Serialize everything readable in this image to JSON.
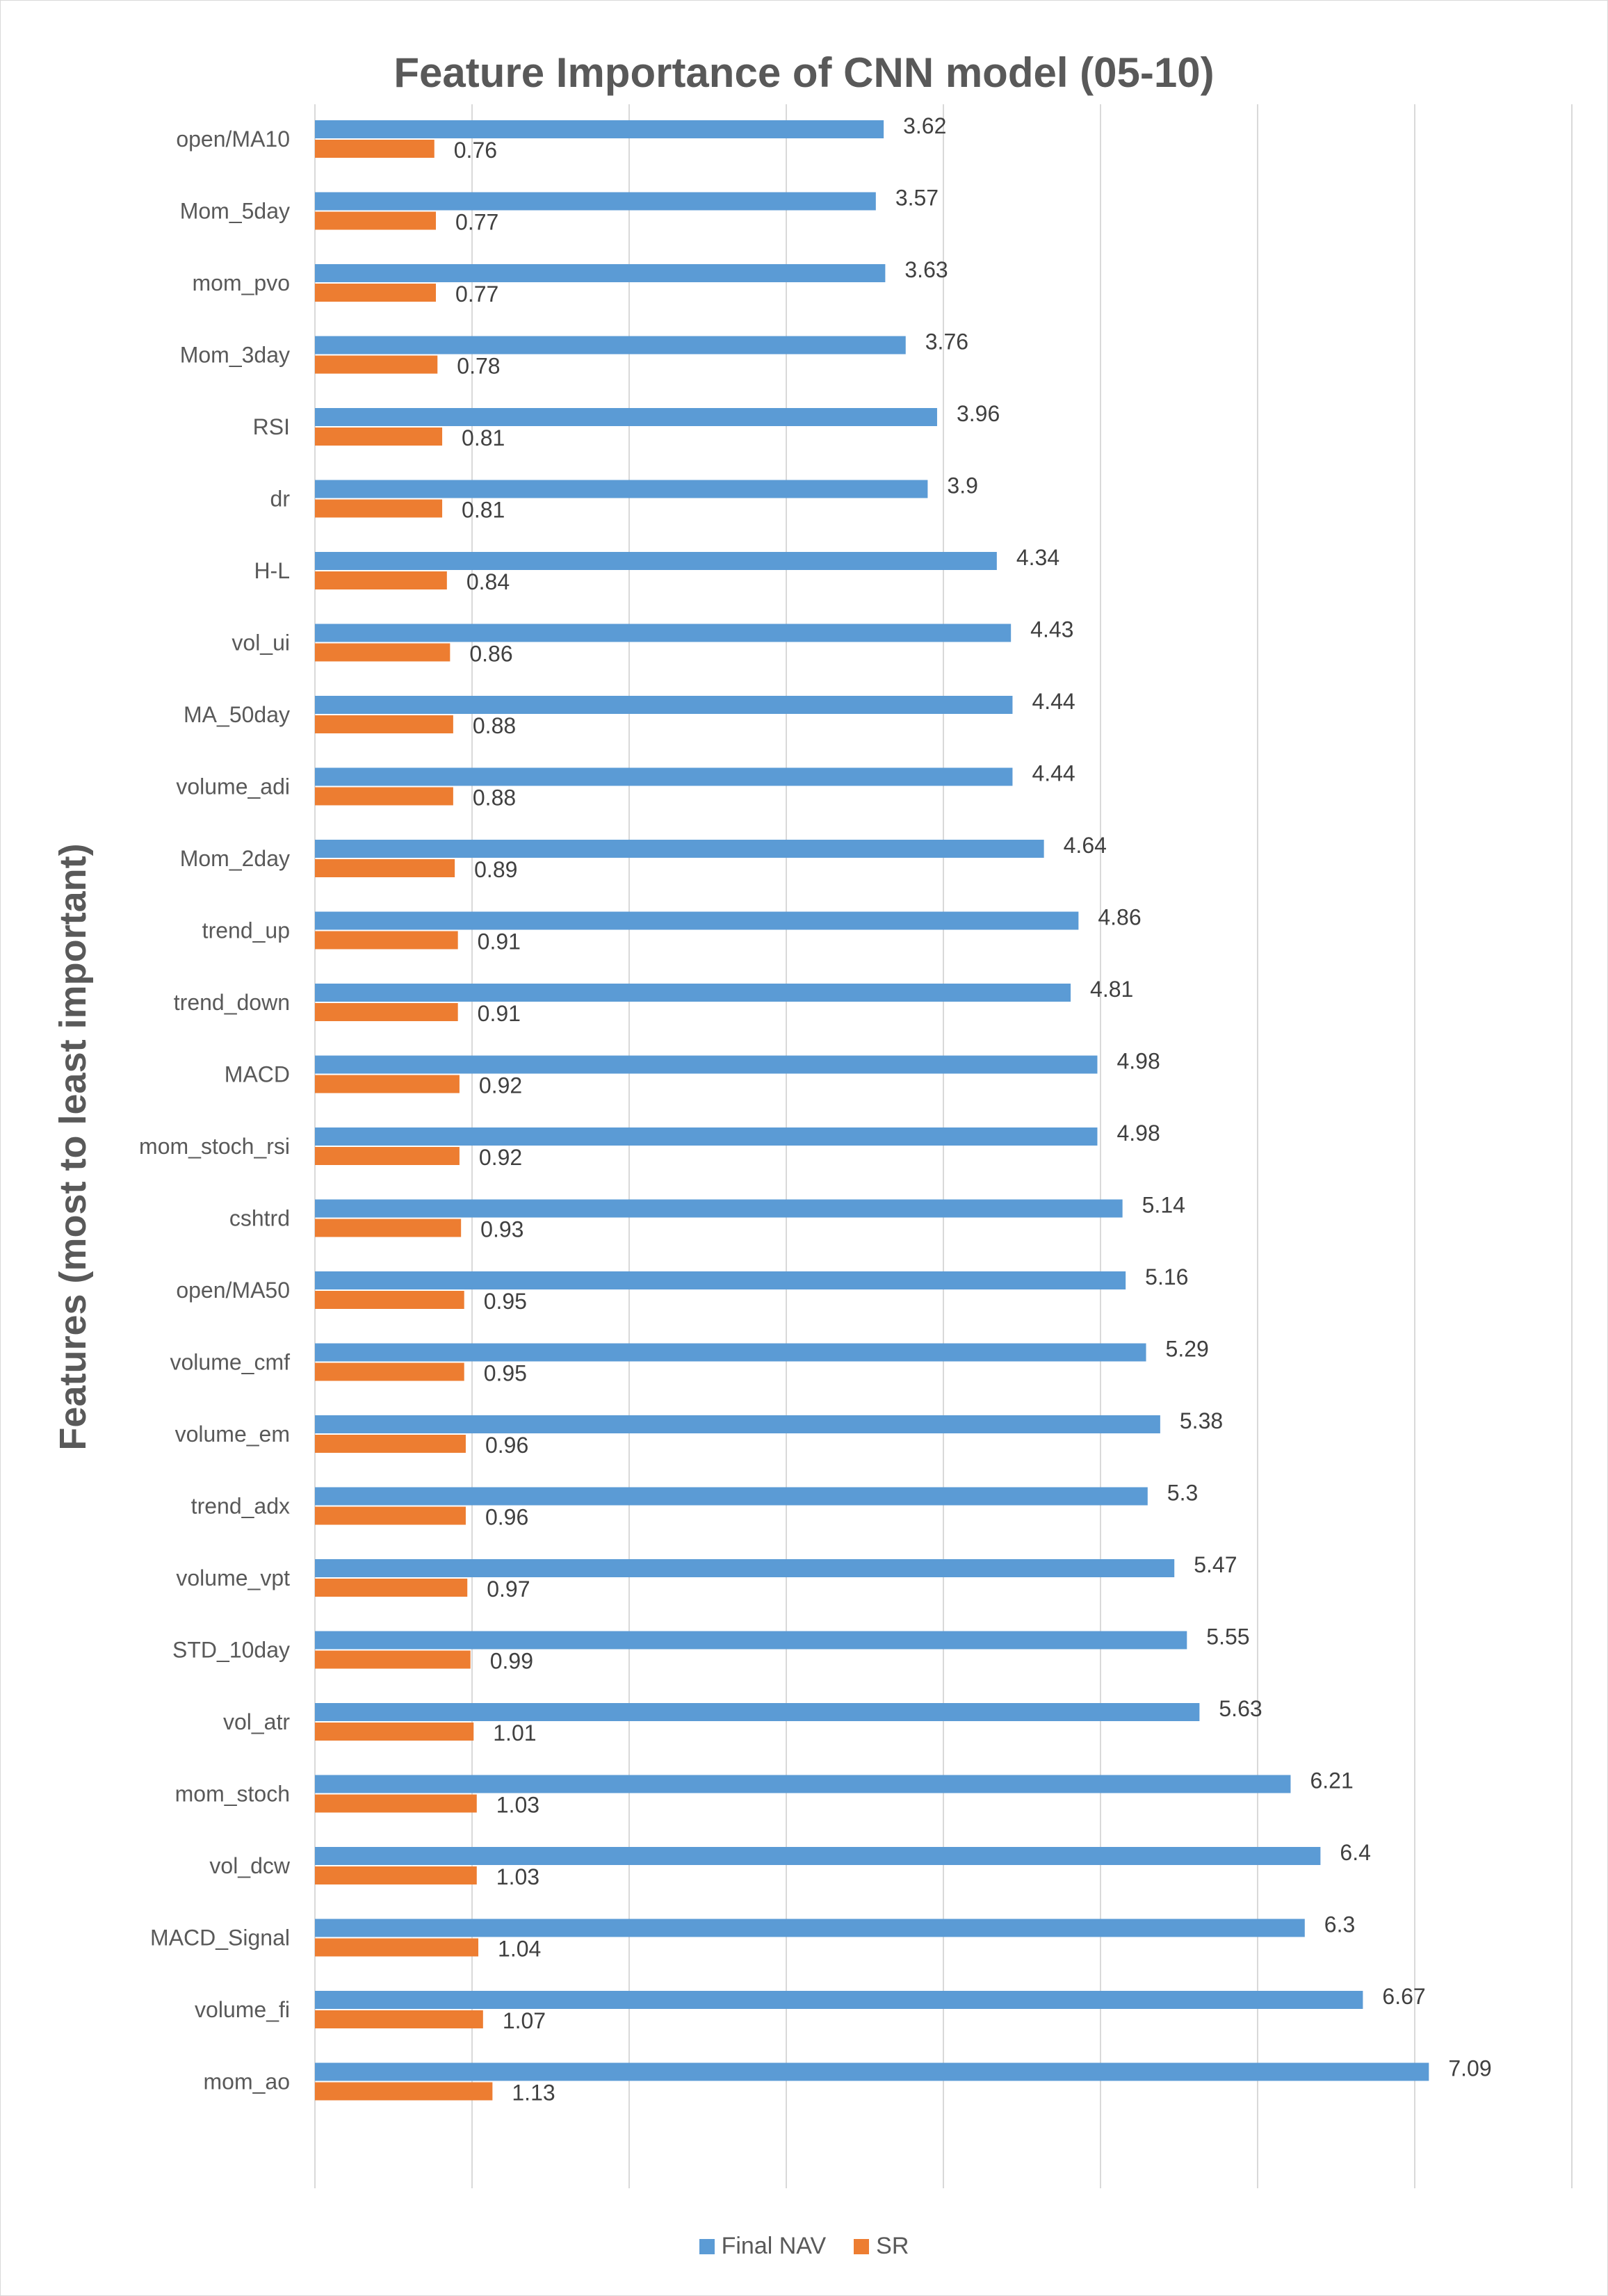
{
  "chart_data": {
    "type": "bar",
    "orientation": "horizontal",
    "title": "Feature Importance of CNN model (05-10)",
    "xlabel": "",
    "ylabel": "Features (most to least important)",
    "categories": [
      "open/MA10",
      "Mom_5day",
      "mom_pvo",
      "Mom_3day",
      "RSI",
      "dr",
      "H-L",
      "vol_ui",
      "MA_50day",
      "volume_adi",
      "Mom_2day",
      "trend_up",
      "trend_down",
      "MACD",
      "mom_stoch_rsi",
      "cshtrd",
      "open/MA50",
      "volume_cmf",
      "volume_em",
      "trend_adx",
      "volume_vpt",
      "STD_10day",
      "vol_atr",
      "mom_stoch",
      "vol_dcw",
      "MACD_Signal",
      "volume_fi",
      "mom_ao"
    ],
    "series": [
      {
        "name": "Final NAV",
        "color": "#5b9bd5",
        "values": [
          3.62,
          3.57,
          3.63,
          3.76,
          3.96,
          3.9,
          4.34,
          4.43,
          4.44,
          4.44,
          4.64,
          4.86,
          4.81,
          4.98,
          4.98,
          5.14,
          5.16,
          5.29,
          5.38,
          5.3,
          5.47,
          5.55,
          5.63,
          6.21,
          6.4,
          6.3,
          6.67,
          7.09
        ]
      },
      {
        "name": "SR",
        "color": "#ed7d31",
        "values": [
          0.76,
          0.77,
          0.77,
          0.78,
          0.81,
          0.81,
          0.84,
          0.86,
          0.88,
          0.88,
          0.89,
          0.91,
          0.91,
          0.92,
          0.92,
          0.93,
          0.95,
          0.95,
          0.96,
          0.96,
          0.97,
          0.99,
          1.01,
          1.03,
          1.03,
          1.04,
          1.07,
          1.13
        ]
      }
    ],
    "xlim": [
      0,
      8
    ],
    "grid": true,
    "legend": "bottom"
  }
}
